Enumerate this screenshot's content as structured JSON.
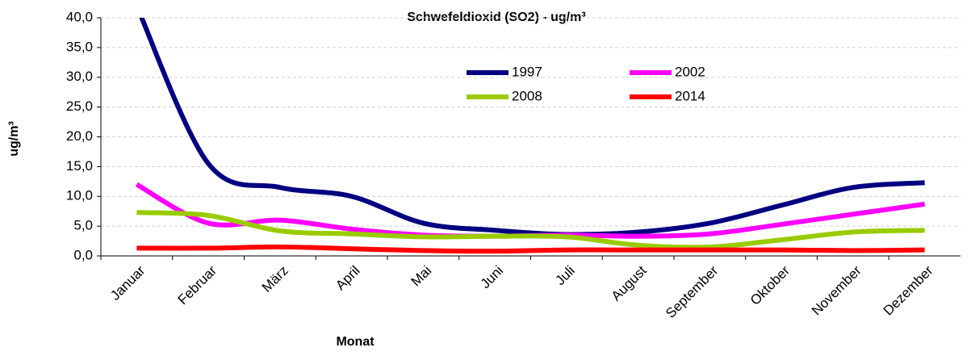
{
  "chart_data": {
    "type": "line",
    "title": "Schwefeldioxid (SO2) - ug/m³",
    "x_label": "Monat",
    "y_label": "ug/m³",
    "categories": [
      "Januar",
      "Februar",
      "März",
      "April",
      "Mai",
      "Juni",
      "Juli",
      "August",
      "September",
      "Oktober",
      "November",
      "Dezember"
    ],
    "series": [
      {
        "name": "1997",
        "color": "#000080",
        "values": [
          42,
          15.5,
          11.5,
          10,
          5.5,
          4.3,
          3.6,
          4,
          5.5,
          8.5,
          11.5,
          12.3
        ]
      },
      {
        "name": "2002",
        "color": "#ff00ff",
        "values": [
          12,
          5.5,
          6,
          4.5,
          3.5,
          3.3,
          3.5,
          3.3,
          3.7,
          5.3,
          7,
          8.7
        ]
      },
      {
        "name": "2008",
        "color": "#99cc00",
        "values": [
          7.3,
          6.8,
          4.2,
          3.7,
          3.2,
          3.3,
          3.2,
          1.8,
          1.5,
          2.7,
          4,
          4.3
        ]
      },
      {
        "name": "2014",
        "color": "#ff0000",
        "values": [
          1.3,
          1.3,
          1.5,
          1.2,
          0.9,
          0.8,
          1.0,
          1.0,
          1.0,
          1.0,
          0.9,
          1.0
        ]
      }
    ],
    "ylim": [
      0,
      40
    ],
    "yticks": [
      {
        "value": 0,
        "label": "0,0"
      },
      {
        "value": 5,
        "label": "5,0"
      },
      {
        "value": 10,
        "label": "10,0"
      },
      {
        "value": 15,
        "label": "15,0"
      },
      {
        "value": 20,
        "label": "20,0"
      },
      {
        "value": 25,
        "label": "25,0"
      },
      {
        "value": 30,
        "label": "30,0"
      },
      {
        "value": 35,
        "label": "35,0"
      },
      {
        "value": 40,
        "label": "40,0"
      }
    ],
    "grid": true
  }
}
